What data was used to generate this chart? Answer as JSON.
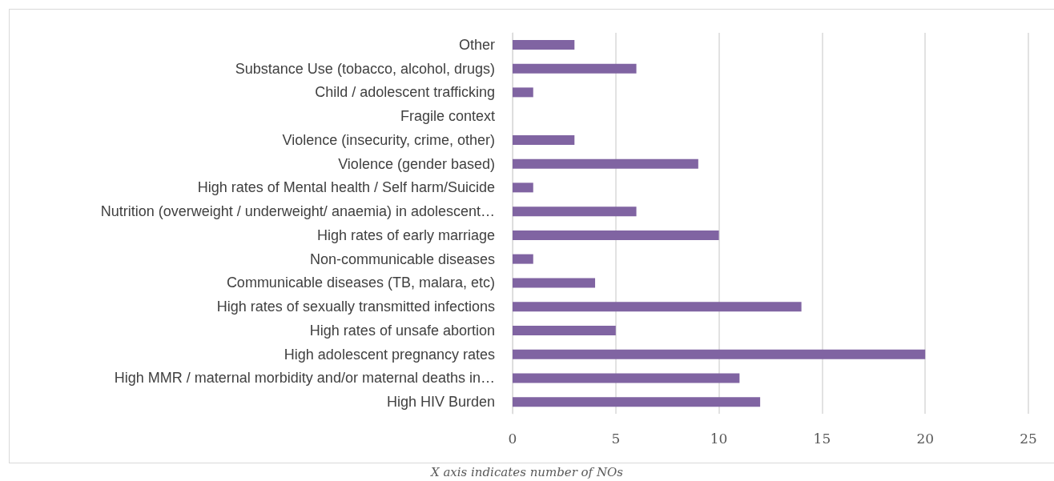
{
  "chart_data": {
    "type": "bar",
    "orientation": "horizontal",
    "categories": [
      "Other",
      "Substance Use (tobacco, alcohol, drugs)",
      "Child / adolescent trafficking",
      "Fragile context",
      "Violence (insecurity, crime, other)",
      "Violence (gender based)",
      "High rates of Mental health / Self harm/Suicide",
      "Nutrition (overweight / underweight/ anaemia) in adolescent…",
      "High rates of early marriage",
      "Non-communicable diseases",
      "Communicable diseases (TB, malara, etc)",
      "High rates of sexually transmitted infections",
      "High rates of unsafe abortion",
      "High adolescent pregnancy rates",
      "High MMR / maternal morbidity and/or maternal deaths in…",
      "High HIV Burden"
    ],
    "values": [
      3,
      6,
      1,
      0,
      3,
      9,
      1,
      6,
      10,
      1,
      4,
      14,
      5,
      20,
      11,
      12
    ],
    "color": "#8064a2",
    "xlim": [
      0,
      25
    ],
    "xticks": [
      0,
      5,
      10,
      15,
      20,
      25
    ],
    "grid": "x",
    "annotations": [
      "X axis indicates number of NOs"
    ]
  }
}
